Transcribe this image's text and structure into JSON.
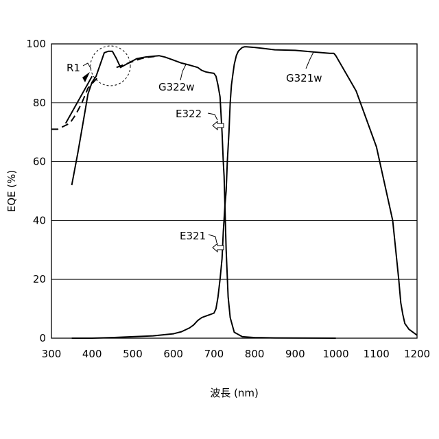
{
  "chart_data": {
    "type": "line",
    "xlabel": "波長 (nm)",
    "ylabel": "EQE (%)",
    "xlim": [
      300,
      1200
    ],
    "ylim": [
      0,
      100
    ],
    "xticks": [
      300,
      400,
      500,
      600,
      700,
      800,
      900,
      1000,
      1100,
      1200
    ],
    "yticks": [
      0,
      20,
      40,
      60,
      80,
      100
    ],
    "grid": "horizontal",
    "series": [
      {
        "name": "G322w",
        "style": "solid",
        "x": [
          350,
          365,
          380,
          390,
          400,
          410,
          420,
          430,
          440,
          450,
          460,
          470,
          490,
          510,
          530,
          550,
          565,
          580,
          600,
          620,
          640,
          660,
          670,
          680,
          690,
          700,
          705,
          710,
          715,
          720,
          723,
          725,
          727,
          730,
          735,
          740,
          750,
          770,
          800,
          850,
          900,
          1000
        ],
        "y": [
          52,
          63,
          75,
          83,
          87,
          89,
          93,
          97,
          97.5,
          97.5,
          95,
          92,
          93.5,
          95,
          95.5,
          95.8,
          96,
          95.5,
          94.5,
          93.5,
          92.8,
          92,
          91,
          90.5,
          90.2,
          90,
          89,
          86,
          82,
          70,
          60,
          55,
          45,
          30,
          14,
          7,
          2,
          0.5,
          0.2,
          0.1,
          0.05,
          0
        ]
      },
      {
        "name": "G321w",
        "style": "solid",
        "x": [
          350,
          400,
          450,
          500,
          550,
          600,
          620,
          640,
          650,
          660,
          670,
          680,
          690,
          700,
          705,
          710,
          715,
          720,
          723,
          727,
          730,
          733,
          737,
          740,
          743,
          747,
          750,
          755,
          760,
          765,
          770,
          775,
          780,
          800,
          850,
          900,
          950,
          985,
          995,
          1000,
          1050,
          1100,
          1140,
          1155,
          1160,
          1165,
          1170,
          1180,
          1200
        ],
        "y": [
          0,
          0,
          0.2,
          0.5,
          0.8,
          1.5,
          2.2,
          3.5,
          4.5,
          6,
          7,
          7.5,
          8,
          8.5,
          10,
          14,
          20,
          27,
          36,
          45,
          50,
          60,
          70,
          80,
          86,
          90,
          93,
          96,
          97.5,
          98.2,
          98.8,
          99,
          99,
          98.8,
          98,
          97.8,
          97.2,
          96.8,
          96.8,
          96,
          84,
          65,
          40,
          20,
          12,
          8,
          5,
          3,
          1
        ]
      },
      {
        "name": "",
        "style": "dashed",
        "x": [
          300,
          315,
          330,
          345,
          360,
          375,
          390,
          410,
          420
        ],
        "y": [
          71,
          71,
          72,
          73,
          76,
          80,
          85,
          88,
          89
        ]
      },
      {
        "name": "",
        "style": "dashed",
        "x": [
          460,
          480,
          500,
          520,
          540,
          560
        ],
        "y": [
          92,
          93,
          94,
          95,
          95.5,
          95.8
        ]
      }
    ],
    "annotations": [
      {
        "text": "R1"
      },
      {
        "text": "G322w"
      },
      {
        "text": "G321w"
      },
      {
        "text": "E322"
      },
      {
        "text": "E321"
      }
    ]
  }
}
